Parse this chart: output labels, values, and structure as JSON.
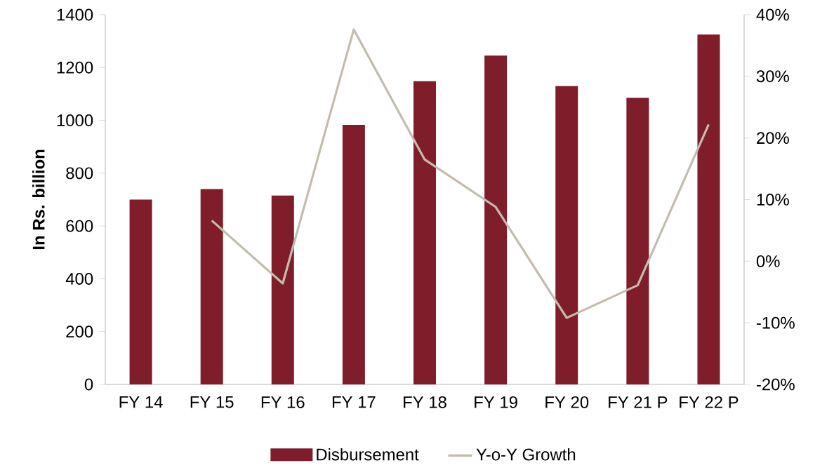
{
  "chart_data": {
    "type": "bar",
    "ylabel": "In Rs. billion",
    "categories": [
      "FY 14",
      "FY 15",
      "FY 16",
      "FY 17",
      "FY 18",
      "FY 19",
      "FY 20",
      "FY 21 P",
      "FY 22 P"
    ],
    "series": [
      {
        "name": "Disbursement",
        "color": "#7f1d2b",
        "values": [
          700,
          740,
          715,
          983,
          1148,
          1245,
          1130,
          1085,
          1325
        ]
      },
      {
        "name": "Y-o-Y Growth",
        "type": "line",
        "axis": "y2",
        "color": "#c4bcae",
        "values": [
          null,
          6.6,
          -3.6,
          37.6,
          16.5,
          8.8,
          -9.2,
          -3.9,
          22.2
        ]
      }
    ],
    "ylim": [
      0,
      1400
    ],
    "yticks": [
      0,
      200,
      400,
      600,
      800,
      1000,
      1200,
      1400
    ],
    "y2lim": [
      -20,
      40
    ],
    "y2ticks": [
      {
        "value": -20,
        "label": "-20%"
      },
      {
        "value": -10,
        "label": "-10%"
      },
      {
        "value": 0,
        "label": "0%"
      },
      {
        "value": 10,
        "label": "10%"
      },
      {
        "value": 20,
        "label": "20%"
      },
      {
        "value": 30,
        "label": "30%"
      },
      {
        "value": 40,
        "label": "40%"
      }
    ],
    "legend": "bottom"
  }
}
